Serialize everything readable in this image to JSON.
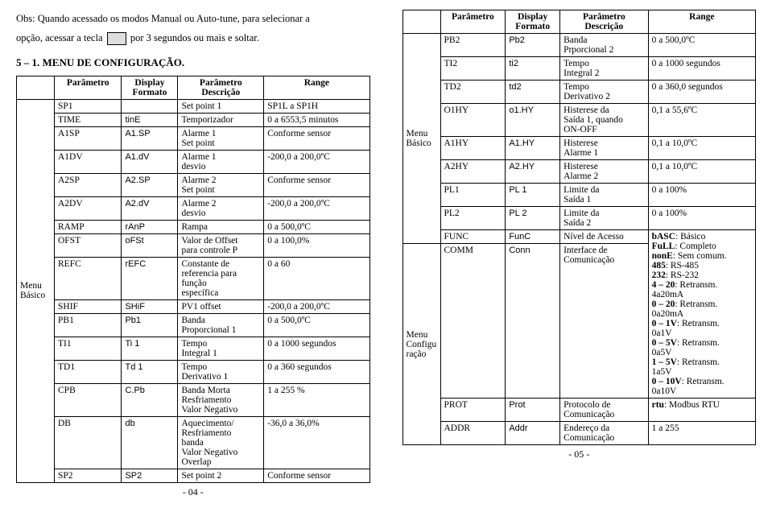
{
  "intro": {
    "line1_a": "Obs: Quando acessado os modos Manual ou Auto-tune, para selecionar a",
    "line2_a": "opção, acessar a tecla",
    "line2_b": "por 3 segundos ou mais e soltar."
  },
  "heading": "5 – 1. MENU DE CONFIGURAÇÃO.",
  "headers": {
    "menu": "",
    "param": "Parâmetro",
    "fmt_a": "Display",
    "fmt_b": "Formato",
    "desc_a": "Parâmetro",
    "desc_b": "Descrição",
    "range": "Range"
  },
  "left_menu": "Menu\nBásico",
  "left_rows": [
    {
      "p": "SP1",
      "f": "",
      "d": "Set point 1",
      "r": "SP1L a SP1H"
    },
    {
      "p": "TIME",
      "f": "tinE",
      "d": "Temporizador",
      "r": "0 a 6553,5 minutos"
    },
    {
      "p": "A1SP",
      "f": "A1.SP",
      "d": "Alarme 1\nSet point",
      "r": "Conforme sensor"
    },
    {
      "p": "A1DV",
      "f": "A1.dV",
      "d": "Alarme 1\ndesvio",
      "r": "-200,0 a 200,0ºC"
    },
    {
      "p": "A2SP",
      "f": "A2.SP",
      "d": "Alarme 2\nSet point",
      "r": "Conforme sensor"
    },
    {
      "p": "A2DV",
      "f": "A2.dV",
      "d": "Alarme 2\ndesvio",
      "r": "-200,0 a 200,0ºC"
    },
    {
      "p": "RAMP",
      "f": "rAnP",
      "d": "Rampa",
      "r": "0 a 500,0ºC"
    },
    {
      "p": "OFST",
      "f": "oFSt",
      "d": "Valor de Offset\npara controle P",
      "r": "0 a 100,0%"
    },
    {
      "p": "REFC",
      "f": "rEFC",
      "d": "Constante de\nreferencia para\nfunção\nespecífica",
      "r": "0 a 60"
    },
    {
      "p": "SHIF",
      "f": "SHiF",
      "d": "PV1 offset",
      "r": "-200,0 a 200,0ºC"
    },
    {
      "p": "PB1",
      "f": "Pb1",
      "d": "Banda\nProporcional 1",
      "r": "0 a 500,0ºC"
    },
    {
      "p": "TI1",
      "f": "Ti 1",
      "d": "Tempo\nIntegral 1",
      "r": "0 a 1000 segundos"
    },
    {
      "p": "TD1",
      "f": "Td 1",
      "d": "Tempo\nDerivativo 1",
      "r": "0 a 360 segundos"
    },
    {
      "p": "CPB",
      "f": "C.Pb",
      "d": "Banda Morta\nResfriamento\nValor Negativo",
      "r": "1 a 255 %"
    },
    {
      "p": "DB",
      "f": "db",
      "d": "Aquecimento/\nResfriamento\nbanda\nValor Negativo\nOverlap",
      "r": "-36,0 a 36,0%"
    },
    {
      "p": "SP2",
      "f": "SP2",
      "d": "Set point 2",
      "r": "Conforme sensor"
    }
  ],
  "right_menu1": "Menu\nBásico",
  "right_rows1": [
    {
      "p": "PB2",
      "f": "Pb2",
      "d": "Banda\nPrporcional 2",
      "r": "0 a 500,0ºC"
    },
    {
      "p": "TI2",
      "f": "ti2",
      "d": "Tempo\nIntegral 2",
      "r": "0 a 1000 segundos"
    },
    {
      "p": "TD2",
      "f": "td2",
      "d": "Tempo\nDerivativo 2",
      "r": "0 a 360,0 segundos"
    },
    {
      "p": "O1HY",
      "f": "o1.HY",
      "d": "Histerese da\nSaída 1, quando\nON-OFF",
      "r": "0,1 a 55,6ºC"
    },
    {
      "p": "A1HY",
      "f": "A1.HY",
      "d": "Histerese\nAlarme 1",
      "r": "0,1 a 10,0ºC"
    },
    {
      "p": "A2HY",
      "f": "A2.HY",
      "d": "Histerese\nAlarme 2",
      "r": "0,1 a 10,0ºC"
    },
    {
      "p": "PL1",
      "f": "PL 1",
      "d": "Limite da\nSaída 1",
      "r": "0 a 100%"
    },
    {
      "p": "PL2",
      "f": "PL 2",
      "d": "Limite da\nSaída 2",
      "r": "0 a 100%"
    },
    {
      "p": "FUNC",
      "f": "FunC",
      "d": "Nível de Acesso",
      "r": "<b>bASC</b>: Básico\n<b>FuLL</b>: Completo\n<b>nonE</b>: Sem comum.\n<b>485</b>: RS-485\n<b>232</b>: RS-232\n<b>4 – 20</b>: Retransm.\n4a20mA\n<b>0 – 20</b>: Retransm.\n0a20mA\n<b>0 – 1V</b>: Retransm.\n0a1V\n<b>0 – 5V</b>: Retransm.\n0a5V\n<b>1 – 5V</b>: Retransm.\n1a5V\n<b>0 – 10V</b>: Retransm.\n0a10V",
      "rows": 1
    }
  ],
  "right_menu2": "Menu\nConfigu\nração",
  "right_rows2": [
    {
      "p": "COMM",
      "f": "Conn",
      "d": "Interface de\nComunicação",
      "r": ""
    },
    {
      "p": "PROT",
      "f": "Prot",
      "d": "Protocolo de\nComunicação",
      "r": "<b>rtu</b>: Modbus RTU"
    },
    {
      "p": "ADDR",
      "f": "Addr",
      "d": "Endereço da\nComunicação",
      "r": "1 a 255"
    }
  ],
  "pagenum_left": "- 04 -",
  "pagenum_right": "- 05 -"
}
